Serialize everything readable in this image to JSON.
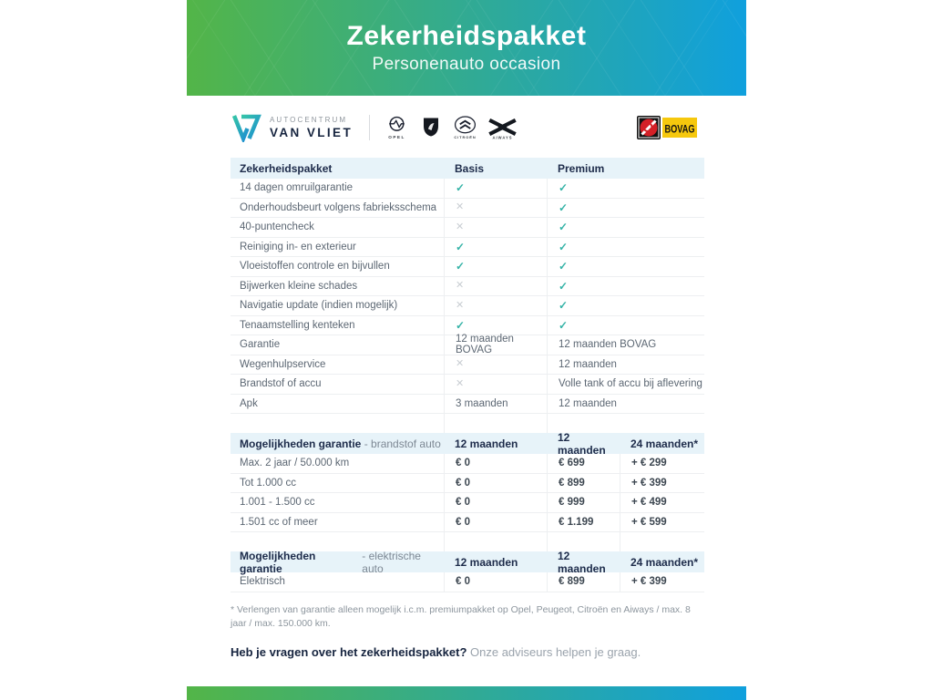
{
  "banner": {
    "title": "Zekerheidspakket",
    "subtitle": "Personenauto occasion"
  },
  "logos": {
    "dealer_line1": "AUTOCENTRUM",
    "dealer_line2": "VAN VLIET",
    "brand_opel": "OPEL",
    "brand_peugeot": "Peugeot",
    "brand_citroen": "CITROËN",
    "brand_aiways": "AIWAYS",
    "bovag": "BOVAG"
  },
  "table1": {
    "headers": [
      "Zekerheidspakket",
      "Basis",
      "Premium"
    ],
    "rows": [
      [
        "14 dagen omruilgarantie",
        "check",
        "check"
      ],
      [
        "Onderhoudsbeurt volgens fabrieksschema",
        "cross",
        "check"
      ],
      [
        "40-puntencheck",
        "cross",
        "check"
      ],
      [
        "Reiniging in- en exterieur",
        "check",
        "check"
      ],
      [
        "Vloeistoffen controle en bijvullen",
        "check",
        "check"
      ],
      [
        "Bijwerken kleine schades",
        "cross",
        "check"
      ],
      [
        "Navigatie update (indien mogelijk)",
        "cross",
        "check"
      ],
      [
        "Tenaamstelling kenteken",
        "check",
        "check"
      ],
      [
        "Garantie",
        "12 maanden BOVAG",
        "12 maanden BOVAG"
      ],
      [
        "Wegenhulpservice",
        "cross",
        "12 maanden"
      ],
      [
        "Brandstof of accu",
        "cross",
        "Volle tank of accu bij aflevering"
      ],
      [
        "Apk",
        "3 maanden",
        "12 maanden"
      ]
    ]
  },
  "table2": {
    "title_bold": "Mogelijkheden garantie",
    "title_light": "- brandstof auto",
    "headers": [
      "12 maanden",
      "12 maanden",
      "24 maanden*"
    ],
    "rows": [
      [
        "Max. 2 jaar / 50.000 km",
        "€ 0",
        "€ 699",
        "+ € 299"
      ],
      [
        "Tot 1.000 cc",
        "€ 0",
        "€ 899",
        "+ € 399"
      ],
      [
        "1.001 - 1.500 cc",
        "€ 0",
        "€ 999",
        "+ € 499"
      ],
      [
        "1.501 cc of meer",
        "€ 0",
        "€ 1.199",
        "+ € 599"
      ]
    ]
  },
  "table3": {
    "title_bold": "Mogelijkheden garantie",
    "title_light": "- elektrische auto",
    "headers": [
      "12 maanden",
      "12 maanden",
      "24 maanden*"
    ],
    "rows": [
      [
        "Elektrisch",
        "€ 0",
        "€ 899",
        "+ € 399"
      ]
    ]
  },
  "footnote": "* Verlengen van garantie alleen mogelijk i.c.m. premiumpakket op Opel, Peugeot, Citroën en Aiways / max. 8 jaar / max. 150.000 km.",
  "footer": {
    "question": "Heb je vragen over het zekerheidspakket?",
    "answer": "Onze adviseurs helpen je graag."
  },
  "colors": {
    "gradient_start": "#53b548",
    "gradient_end": "#10a0dd",
    "check": "#35b3a7",
    "cross": "#c9ced3",
    "header_bg": "#e7f3f9"
  }
}
